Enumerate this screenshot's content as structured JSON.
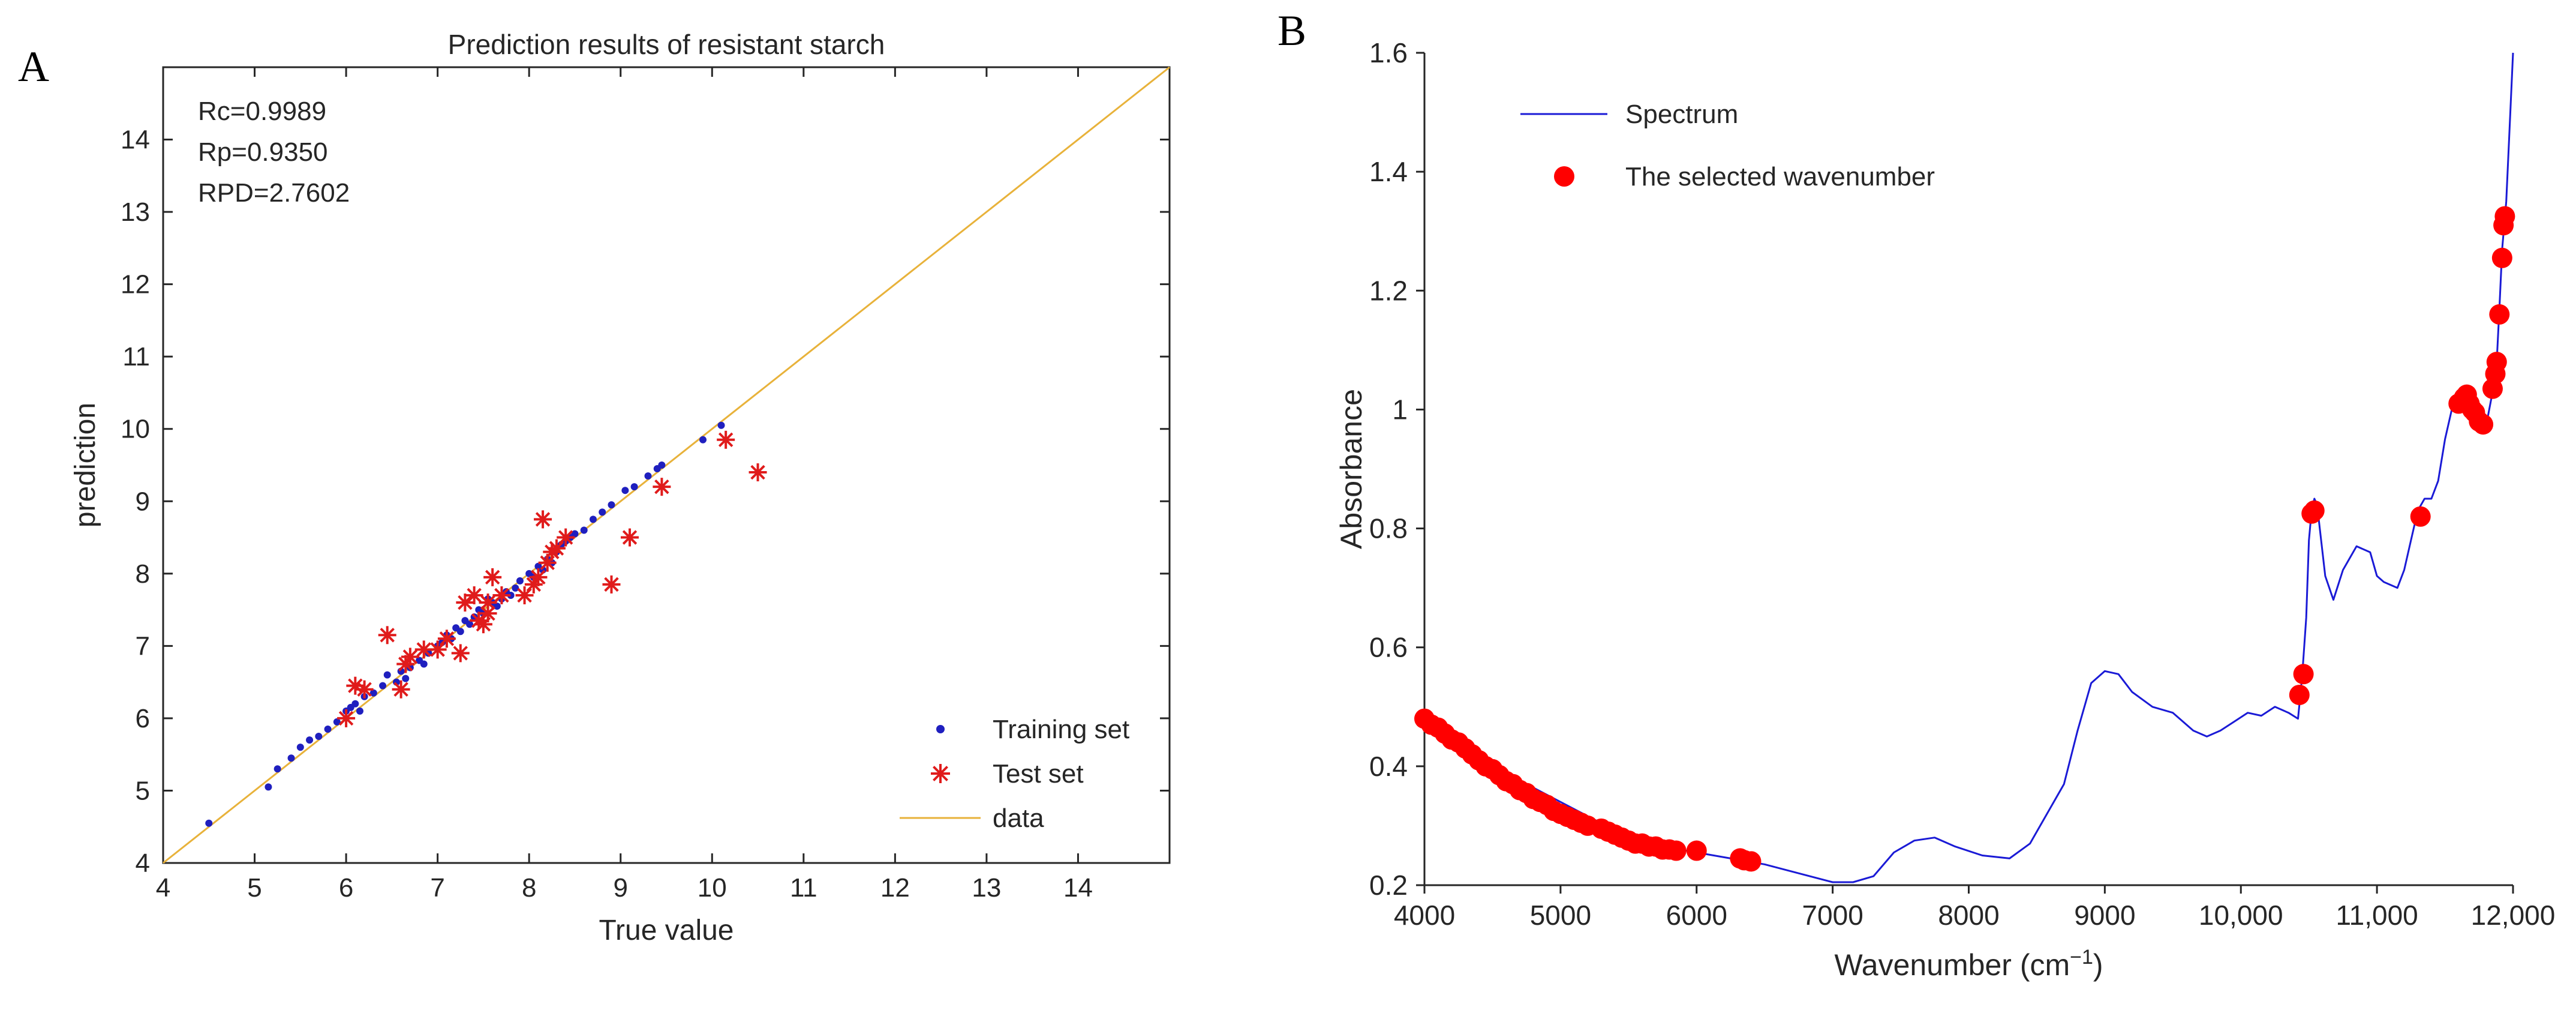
{
  "panels": {
    "a": "A",
    "b": "B"
  },
  "chart_data": [
    {
      "type": "scatter",
      "title": "Prediction results of resistant starch",
      "xlabel": "True value",
      "ylabel": "prediction",
      "xlim": [
        4,
        15
      ],
      "ylim": [
        4,
        15
      ],
      "xticks": [
        4,
        5,
        6,
        7,
        8,
        9,
        10,
        11,
        12,
        13,
        14
      ],
      "yticks": [
        4,
        5,
        6,
        7,
        8,
        9,
        10,
        11,
        12,
        13,
        14
      ],
      "stats": [
        "Rc=0.9989",
        "Rp=0.9350",
        "RPD=2.7602"
      ],
      "legend_position": "bottom-right",
      "series": [
        {
          "name": "Training set",
          "marker": "dot",
          "color": "#1f1fbf",
          "points": [
            [
              4.5,
              4.55
            ],
            [
              5.15,
              5.05
            ],
            [
              5.25,
              5.3
            ],
            [
              5.4,
              5.45
            ],
            [
              5.5,
              5.6
            ],
            [
              5.6,
              5.7
            ],
            [
              5.7,
              5.75
            ],
            [
              5.8,
              5.85
            ],
            [
              5.9,
              5.95
            ],
            [
              6.0,
              6.1
            ],
            [
              6.05,
              6.15
            ],
            [
              6.1,
              6.2
            ],
            [
              6.2,
              6.3
            ],
            [
              6.3,
              6.35
            ],
            [
              6.4,
              6.45
            ],
            [
              6.45,
              6.6
            ],
            [
              6.6,
              6.65
            ],
            [
              6.7,
              6.7
            ],
            [
              6.8,
              6.8
            ],
            [
              6.85,
              6.75
            ],
            [
              6.9,
              6.9
            ],
            [
              7.0,
              7.0
            ],
            [
              7.05,
              7.05
            ],
            [
              7.1,
              7.15
            ],
            [
              7.15,
              7.1
            ],
            [
              7.2,
              7.25
            ],
            [
              7.3,
              7.35
            ],
            [
              7.35,
              7.3
            ],
            [
              7.4,
              7.4
            ],
            [
              7.45,
              7.5
            ],
            [
              7.5,
              7.45
            ],
            [
              7.6,
              7.6
            ],
            [
              7.65,
              7.55
            ],
            [
              7.7,
              7.65
            ],
            [
              7.8,
              7.7
            ],
            [
              7.85,
              7.8
            ],
            [
              7.9,
              7.9
            ],
            [
              8.0,
              8.0
            ],
            [
              8.05,
              7.95
            ],
            [
              8.1,
              8.1
            ],
            [
              8.15,
              8.05
            ],
            [
              8.2,
              8.2
            ],
            [
              8.3,
              8.3
            ],
            [
              8.35,
              8.4
            ],
            [
              8.4,
              8.45
            ],
            [
              8.5,
              8.55
            ],
            [
              8.6,
              8.6
            ],
            [
              8.7,
              8.75
            ],
            [
              8.8,
              8.85
            ],
            [
              8.9,
              8.95
            ],
            [
              9.05,
              9.15
            ],
            [
              9.15,
              9.2
            ],
            [
              9.3,
              9.35
            ],
            [
              9.4,
              9.45
            ],
            [
              9.45,
              9.5
            ],
            [
              9.9,
              9.85
            ],
            [
              10.1,
              10.05
            ],
            [
              6.65,
              6.55
            ],
            [
              7.25,
              7.2
            ],
            [
              7.55,
              7.65
            ],
            [
              7.75,
              7.75
            ],
            [
              8.25,
              8.15
            ],
            [
              8.45,
              8.5
            ],
            [
              6.15,
              6.1
            ],
            [
              6.55,
              6.5
            ]
          ]
        },
        {
          "name": "Test set",
          "marker": "asterisk",
          "color": "#e01b1b",
          "points": [
            [
              6.0,
              6.0
            ],
            [
              6.1,
              6.45
            ],
            [
              6.2,
              6.4
            ],
            [
              6.45,
              7.15
            ],
            [
              6.6,
              6.4
            ],
            [
              6.7,
              6.85
            ],
            [
              6.85,
              6.95
            ],
            [
              7.0,
              6.95
            ],
            [
              7.1,
              7.1
            ],
            [
              7.25,
              6.9
            ],
            [
              7.3,
              7.6
            ],
            [
              7.4,
              7.7
            ],
            [
              7.45,
              7.35
            ],
            [
              7.5,
              7.3
            ],
            [
              7.55,
              7.6
            ],
            [
              7.6,
              7.95
            ],
            [
              7.7,
              7.7
            ],
            [
              7.95,
              7.7
            ],
            [
              8.05,
              7.85
            ],
            [
              8.1,
              7.95
            ],
            [
              8.15,
              8.75
            ],
            [
              8.2,
              8.15
            ],
            [
              8.25,
              8.3
            ],
            [
              8.3,
              8.35
            ],
            [
              8.4,
              8.5
            ],
            [
              8.9,
              7.85
            ],
            [
              9.1,
              8.5
            ],
            [
              9.45,
              9.2
            ],
            [
              10.15,
              9.85
            ],
            [
              10.5,
              9.4
            ],
            [
              7.55,
              7.45
            ],
            [
              6.65,
              6.75
            ]
          ]
        },
        {
          "name": "data",
          "marker": "line",
          "color": "#e8b23a",
          "points": [
            [
              4,
              4
            ],
            [
              15,
              15
            ]
          ]
        }
      ]
    },
    {
      "type": "line",
      "xlabel": "Wavenumber (cm",
      "xlabel_superscript": "−1",
      "xlabel_suffix": ")",
      "ylabel": "Absorbance",
      "xlim": [
        4000,
        12000
      ],
      "ylim": [
        0.2,
        1.6
      ],
      "xticks": [
        4000,
        5000,
        6000,
        7000,
        8000,
        9000,
        10000,
        11000,
        12000
      ],
      "xtick_labels": [
        "4000",
        "5000",
        "6000",
        "7000",
        "8000",
        "9000",
        "10,000",
        "11,000",
        "12,000"
      ],
      "yticks": [
        0.2,
        0.4,
        0.6,
        0.8,
        1.0,
        1.2,
        1.4,
        1.6
      ],
      "ytick_labels": [
        "0.2",
        "0.4",
        "0.6",
        "0.8",
        "1",
        "1.2",
        "1.4",
        "1.6"
      ],
      "legend_position": "top-left",
      "series": [
        {
          "name": "Spectrum",
          "color": "#1a1ad6",
          "x": [
            4000,
            4250,
            4500,
            4750,
            5000,
            5250,
            5500,
            5750,
            6000,
            6250,
            6500,
            6750,
            7000,
            7150,
            7300,
            7450,
            7600,
            7750,
            7900,
            8100,
            8300,
            8450,
            8600,
            8700,
            8800,
            8900,
            9000,
            9100,
            9200,
            9350,
            9500,
            9650,
            9750,
            9850,
            9950,
            10050,
            10150,
            10250,
            10350,
            10420,
            10450,
            10480,
            10500,
            10520,
            10540,
            10560,
            10580,
            10620,
            10680,
            10750,
            10850,
            10950,
            11000,
            11050,
            11150,
            11200,
            11250,
            11300,
            11350,
            11400,
            11450,
            11500,
            11550,
            11600,
            11650,
            11700,
            11750,
            11800,
            11850,
            11880,
            11900,
            11920,
            11950,
            11980,
            12000
          ],
          "y": [
            0.485,
            0.44,
            0.405,
            0.37,
            0.34,
            0.31,
            0.285,
            0.265,
            0.255,
            0.245,
            0.235,
            0.22,
            0.205,
            0.205,
            0.215,
            0.255,
            0.275,
            0.28,
            0.265,
            0.25,
            0.245,
            0.27,
            0.33,
            0.37,
            0.46,
            0.54,
            0.56,
            0.555,
            0.525,
            0.5,
            0.49,
            0.46,
            0.45,
            0.46,
            0.475,
            0.49,
            0.485,
            0.5,
            0.49,
            0.48,
            0.55,
            0.65,
            0.78,
            0.83,
            0.85,
            0.84,
            0.8,
            0.72,
            0.68,
            0.73,
            0.77,
            0.76,
            0.72,
            0.71,
            0.7,
            0.73,
            0.78,
            0.83,
            0.85,
            0.85,
            0.88,
            0.95,
            1.0,
            1.02,
            1.01,
            1.0,
            0.98,
            0.97,
            1.03,
            1.08,
            1.17,
            1.27,
            1.35,
            1.5,
            1.6
          ]
        },
        {
          "name": "The selected wavenumber",
          "marker": "circle",
          "color": "#ff0000",
          "x": [
            4000,
            4050,
            4100,
            4150,
            4200,
            4250,
            4300,
            4350,
            4400,
            4450,
            4500,
            4550,
            4600,
            4650,
            4700,
            4750,
            4800,
            4850,
            4900,
            4950,
            5000,
            5050,
            5100,
            5150,
            5200,
            5300,
            5350,
            5400,
            5450,
            5500,
            5550,
            5600,
            5650,
            5700,
            5750,
            5800,
            5850,
            6000,
            6320,
            6350,
            6400,
            10430,
            10460,
            10520,
            10540,
            11320,
            11600,
            11640,
            11660,
            11680,
            11700,
            11720,
            11750,
            11780,
            11850,
            11870,
            11880,
            11900,
            11920,
            11930,
            11940
          ],
          "y": [
            0.48,
            0.47,
            0.465,
            0.455,
            0.445,
            0.44,
            0.43,
            0.42,
            0.41,
            0.4,
            0.395,
            0.385,
            0.375,
            0.37,
            0.36,
            0.355,
            0.345,
            0.34,
            0.335,
            0.325,
            0.32,
            0.315,
            0.31,
            0.305,
            0.3,
            0.295,
            0.29,
            0.285,
            0.28,
            0.275,
            0.27,
            0.27,
            0.265,
            0.265,
            0.26,
            0.26,
            0.258,
            0.258,
            0.245,
            0.242,
            0.24,
            0.52,
            0.555,
            0.825,
            0.83,
            0.82,
            1.01,
            1.02,
            1.025,
            1.01,
            1.0,
            0.995,
            0.98,
            0.975,
            1.035,
            1.06,
            1.08,
            1.16,
            1.255,
            1.31,
            1.325
          ]
        }
      ]
    }
  ]
}
